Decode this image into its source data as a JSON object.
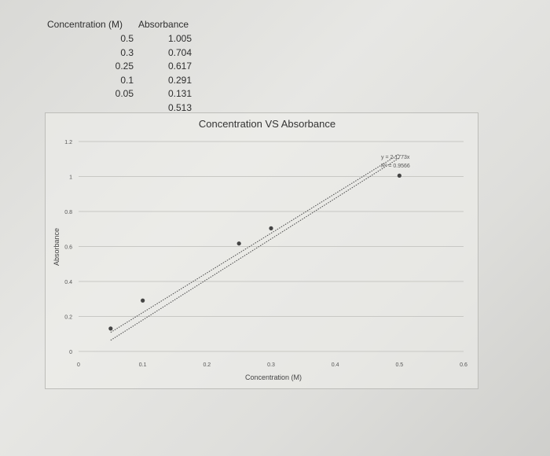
{
  "table": {
    "header_conc": "Concentration (M)",
    "header_abs": "Absorbance",
    "rows": [
      {
        "conc": "0.5",
        "abs": "1.005"
      },
      {
        "conc": "0.3",
        "abs": "0.704"
      },
      {
        "conc": "0.25",
        "abs": "0.617"
      },
      {
        "conc": "0.1",
        "abs": "0.291"
      },
      {
        "conc": "0.05",
        "abs": "0.131"
      },
      {
        "conc": "",
        "abs": "0.513"
      }
    ]
  },
  "chart_data": {
    "type": "scatter",
    "title": "Concentration VS Absorbance",
    "xlabel": "Concentration (M)",
    "ylabel": "Absorbance",
    "xlim": [
      0,
      0.6
    ],
    "ylim": [
      0,
      1.2
    ],
    "x_ticks": [
      "0",
      "0.1",
      "0.2",
      "0.3",
      "0.4",
      "0.5",
      "0.6"
    ],
    "y_ticks": [
      "0",
      "0.2",
      "0.4",
      "0.6",
      "0.8",
      "1",
      "1.2"
    ],
    "grid": true,
    "points": [
      {
        "x": 0.05,
        "y": 0.131
      },
      {
        "x": 0.1,
        "y": 0.291
      },
      {
        "x": 0.25,
        "y": 0.617
      },
      {
        "x": 0.3,
        "y": 0.704
      },
      {
        "x": 0.5,
        "y": 1.005
      }
    ],
    "trendline": {
      "equation": "y = 2.1773x",
      "r_squared": "R² = 0.9566",
      "slope": 2.1773
    },
    "colors": {
      "points": "#444444",
      "trendline": "#555555",
      "grid": "#c8c8c4"
    }
  }
}
